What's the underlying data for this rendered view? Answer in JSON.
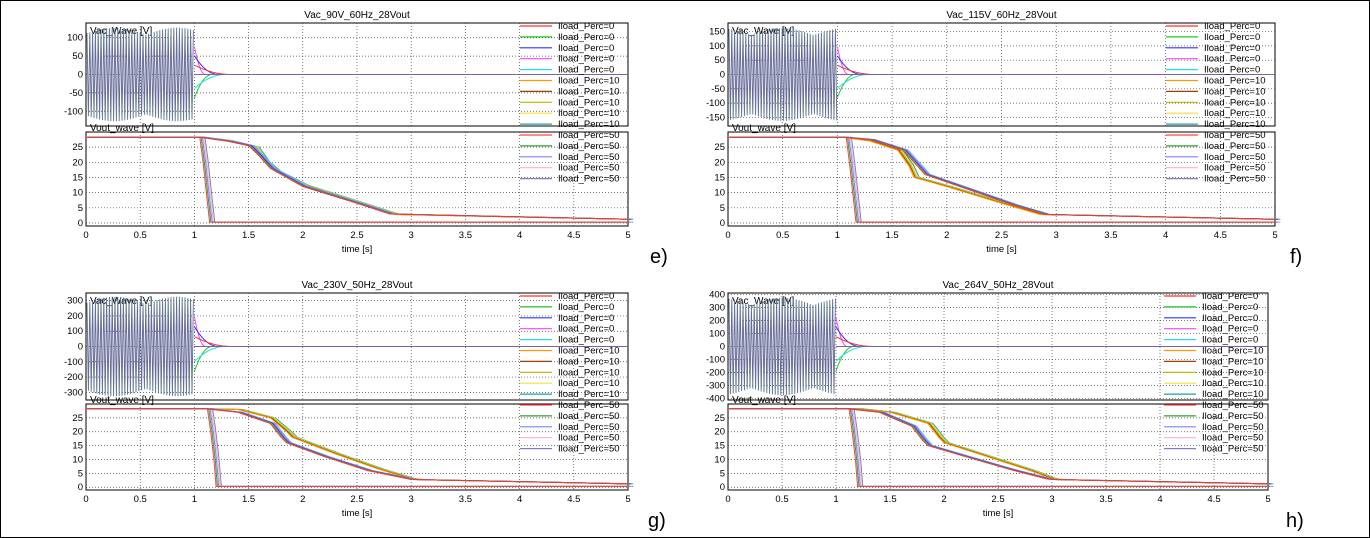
{
  "legend_labels": [
    "Iload_Perc=0",
    "Iload_Perc=0",
    "Iload_Perc=0",
    "Iload_Perc=0",
    "Iload_Perc=0",
    "Iload_Perc=10",
    "Iload_Perc=10",
    "Iload_Perc=10",
    "Iload_Perc=10",
    "Iload_Perc=10",
    "Iload_Perc=50",
    "Iload_Perc=50",
    "Iload_Perc=50",
    "Iload_Perc=50",
    "Iload_Perc=50"
  ],
  "series_colors": [
    "#ff3030",
    "#20c820",
    "#3030ff",
    "#ff40ff",
    "#20e0e0",
    "#ff9900",
    "#a04000",
    "#b8b800",
    "#f0e040",
    "#20a0a0",
    "#ff4040",
    "#30a030",
    "#8080ff",
    "#ffb0c0",
    "#8080c0"
  ],
  "chart_data": [
    {
      "type": "line",
      "title": "Vac_90V_60Hz_28Vout",
      "letter": "e)",
      "xlabel": "time [s]",
      "xlim": [
        0,
        5
      ],
      "xticks": [
        "0",
        "0.5",
        "1",
        "1.5",
        "2",
        "2.5",
        "3",
        "3.5",
        "4",
        "4.5",
        "5"
      ],
      "top": {
        "label": "Vac_Wave [V]",
        "ylim": [
          -140,
          140
        ],
        "yticks": [
          100,
          50,
          0,
          -50,
          -100
        ],
        "amplitude": 127,
        "off_time": 1.0
      },
      "bottom": {
        "label": "Vout_wave [V]",
        "ylim": [
          -1,
          30
        ],
        "yticks": [
          25,
          20,
          15,
          10,
          5,
          0
        ],
        "groups": [
          {
            "name": "Iload_Perc=0",
            "points": [
              [
                0,
                28.3
              ],
              [
                1.05,
                28.3
              ],
              [
                1.3,
                27
              ],
              [
                1.5,
                25.5
              ],
              [
                1.6,
                22
              ],
              [
                1.7,
                18
              ],
              [
                2.0,
                12
              ],
              [
                2.5,
                6.5
              ],
              [
                2.8,
                3
              ],
              [
                3,
                2.8
              ],
              [
                5,
                1.2
              ]
            ]
          },
          {
            "name": "Iload_Perc=10",
            "points": [
              [
                0,
                28.3
              ],
              [
                1.05,
                28.3
              ],
              [
                1.3,
                27.2
              ],
              [
                1.55,
                25
              ],
              [
                1.65,
                20
              ],
              [
                1.75,
                17
              ],
              [
                2.0,
                12.5
              ],
              [
                2.5,
                6.8
              ],
              [
                2.85,
                2.8
              ],
              [
                3,
                2.7
              ],
              [
                5,
                1.2
              ]
            ]
          },
          {
            "name": "Iload_Perc=50",
            "points": [
              [
                0,
                28.3
              ],
              [
                1.05,
                28.3
              ],
              [
                1.08,
                20
              ],
              [
                1.11,
                10
              ],
              [
                1.14,
                0.3
              ],
              [
                5,
                0.3
              ]
            ]
          }
        ]
      }
    },
    {
      "type": "line",
      "title": "Vac_115V_60Hz_28Vout",
      "letter": "f)",
      "xlabel": "time [s]",
      "xlim": [
        0,
        5
      ],
      "xticks": [
        "0",
        "0.5",
        "1",
        "1.5",
        "2",
        "2.5",
        "3",
        "3.5",
        "4",
        "4.5",
        "5"
      ],
      "top": {
        "label": "Vac_Wave [V]",
        "ylim": [
          -180,
          180
        ],
        "yticks": [
          150,
          100,
          50,
          0,
          -50,
          -100,
          -150
        ],
        "amplitude": 162,
        "off_time": 1.0
      },
      "bottom": {
        "label": "Vout_wave [V]",
        "ylim": [
          -1,
          30
        ],
        "yticks": [
          25,
          20,
          15,
          10,
          5,
          0
        ],
        "groups": [
          {
            "name": "Iload_Perc=0",
            "points": [
              [
                0,
                28.3
              ],
              [
                1.05,
                28.3
              ],
              [
                1.3,
                27.5
              ],
              [
                1.6,
                24
              ],
              [
                1.7,
                20
              ],
              [
                1.8,
                16
              ],
              [
                2.2,
                11
              ],
              [
                2.6,
                6
              ],
              [
                2.9,
                2.8
              ],
              [
                3,
                2.7
              ],
              [
                5,
                1.2
              ]
            ]
          },
          {
            "name": "Iload_Perc=10",
            "points": [
              [
                0,
                28.3
              ],
              [
                1.05,
                28.3
              ],
              [
                1.3,
                27
              ],
              [
                1.55,
                24
              ],
              [
                1.65,
                19
              ],
              [
                1.7,
                15
              ],
              [
                2.0,
                12
              ],
              [
                2.5,
                6.5
              ],
              [
                2.85,
                2.8
              ],
              [
                3,
                2.7
              ],
              [
                5,
                1.2
              ]
            ]
          },
          {
            "name": "Iload_Perc=50",
            "points": [
              [
                0,
                28.3
              ],
              [
                1.08,
                28.3
              ],
              [
                1.11,
                20
              ],
              [
                1.14,
                10
              ],
              [
                1.17,
                0.3
              ],
              [
                5,
                0.3
              ]
            ]
          }
        ]
      }
    },
    {
      "type": "line",
      "title": "Vac_230V_50Hz_28Vout",
      "letter": "g)",
      "xlabel": "time [s]",
      "xlim": [
        0,
        5
      ],
      "xticks": [
        "0",
        "0.5",
        "1",
        "1.5",
        "2",
        "2.5",
        "3",
        "3.5",
        "4",
        "4.5",
        "5"
      ],
      "top": {
        "label": "Vac_Wave [V]",
        "ylim": [
          -350,
          350
        ],
        "yticks": [
          300,
          200,
          100,
          0,
          -100,
          -200,
          -300
        ],
        "amplitude": 325,
        "off_time": 1.0
      },
      "bottom": {
        "label": "Vout_wave [V]",
        "ylim": [
          -1,
          30
        ],
        "yticks": [
          25,
          20,
          15,
          10,
          5,
          0
        ],
        "groups": [
          {
            "name": "Iload_Perc=0",
            "points": [
              [
                0,
                28.3
              ],
              [
                1.1,
                28.3
              ],
              [
                1.4,
                27
              ],
              [
                1.7,
                23
              ],
              [
                1.8,
                18
              ],
              [
                1.85,
                16
              ],
              [
                2.2,
                11
              ],
              [
                2.6,
                6
              ],
              [
                3.0,
                2.8
              ],
              [
                3.1,
                2.7
              ],
              [
                5,
                1.2
              ]
            ]
          },
          {
            "name": "Iload_Perc=10",
            "points": [
              [
                0,
                28.3
              ],
              [
                1.1,
                28.3
              ],
              [
                1.4,
                28
              ],
              [
                1.7,
                25
              ],
              [
                1.85,
                20
              ],
              [
                1.9,
                18
              ],
              [
                2.3,
                12
              ],
              [
                2.7,
                6.5
              ],
              [
                3.0,
                3
              ],
              [
                3.1,
                2.7
              ],
              [
                5,
                1.2
              ]
            ]
          },
          {
            "name": "Iload_Perc=50",
            "points": [
              [
                0,
                28.3
              ],
              [
                1.12,
                28.3
              ],
              [
                1.15,
                20
              ],
              [
                1.18,
                10
              ],
              [
                1.2,
                0.3
              ],
              [
                5,
                0.3
              ]
            ]
          }
        ]
      }
    },
    {
      "type": "line",
      "title": "Vac_264V_50Hz_28Vout",
      "letter": "h)",
      "xlabel": "time [s]",
      "xlim": [
        0,
        5
      ],
      "xticks": [
        "0",
        "0.5",
        "1",
        "1.5",
        "2",
        "2.5",
        "3",
        "3.5",
        "4",
        "4.5",
        "5"
      ],
      "top": {
        "label": "Vac_Wave [V]",
        "ylim": [
          -410,
          410
        ],
        "yticks": [
          400,
          300,
          200,
          100,
          0,
          -100,
          -200,
          -300,
          -400
        ],
        "amplitude": 373,
        "off_time": 1.0
      },
      "bottom": {
        "label": "Vout_wave [V]",
        "ylim": [
          -1,
          30
        ],
        "yticks": [
          25,
          20,
          15,
          10,
          5,
          0
        ],
        "groups": [
          {
            "name": "Iload_Perc=0",
            "points": [
              [
                0,
                28.3
              ],
              [
                1.1,
                28.3
              ],
              [
                1.4,
                27
              ],
              [
                1.7,
                22
              ],
              [
                1.8,
                17
              ],
              [
                1.85,
                15
              ],
              [
                2.2,
                11
              ],
              [
                2.6,
                6.5
              ],
              [
                2.95,
                3
              ],
              [
                3.0,
                2.8
              ],
              [
                5,
                1.2
              ]
            ]
          },
          {
            "name": "Iload_Perc=10",
            "points": [
              [
                0,
                28.3
              ],
              [
                1.2,
                28.3
              ],
              [
                1.5,
                27
              ],
              [
                1.85,
                23
              ],
              [
                1.95,
                18
              ],
              [
                2.0,
                16
              ],
              [
                2.4,
                11
              ],
              [
                2.8,
                6
              ],
              [
                3.0,
                3
              ],
              [
                3.1,
                2.7
              ],
              [
                5,
                1.2
              ]
            ]
          },
          {
            "name": "Iload_Perc=50",
            "points": [
              [
                0,
                28.3
              ],
              [
                1.12,
                28.3
              ],
              [
                1.15,
                20
              ],
              [
                1.18,
                10
              ],
              [
                1.2,
                0.3
              ],
              [
                5,
                0.3
              ]
            ]
          }
        ]
      }
    }
  ]
}
